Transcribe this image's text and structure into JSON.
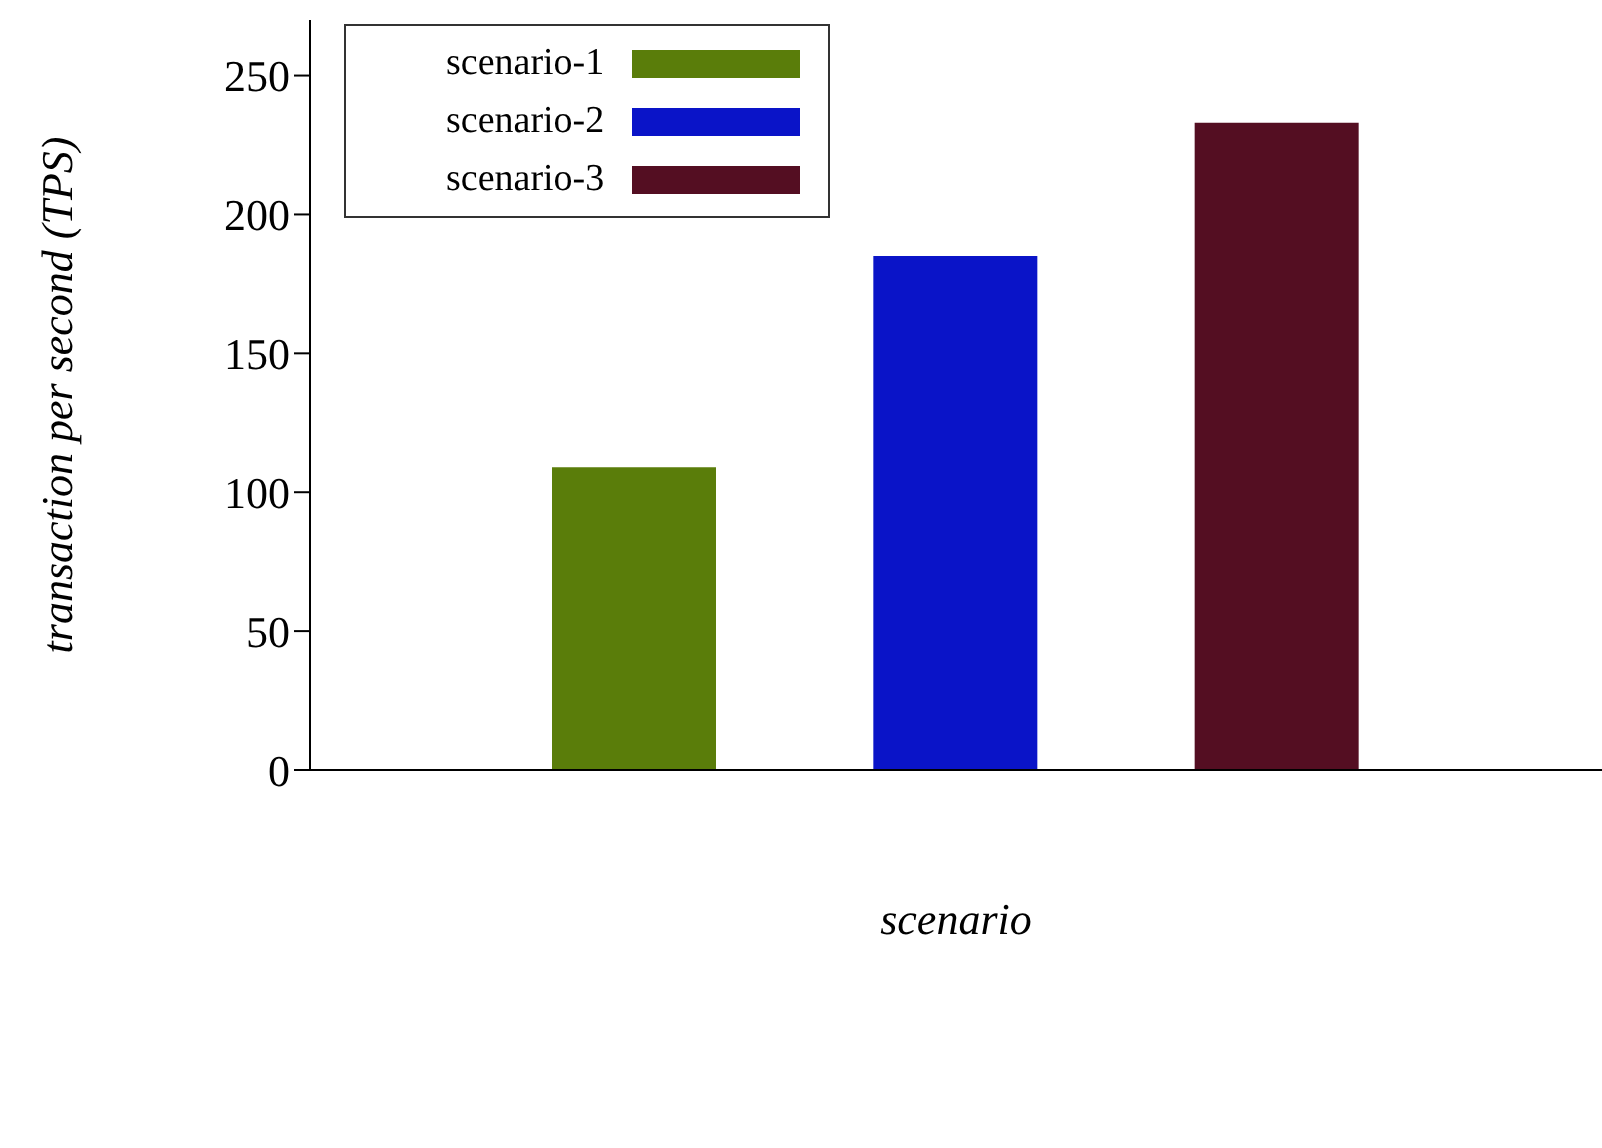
{
  "chart_data": {
    "type": "bar",
    "xlabel": "scenario",
    "ylabel": "transaction per second (TPS)",
    "categories": [
      null,
      null,
      null
    ],
    "stacked": true,
    "legend": "top left",
    "ylim": [
      0,
      270
    ],
    "yticks": [
      0,
      50,
      100,
      150,
      200,
      250
    ],
    "series": [
      {
        "name": "scenario-1",
        "color": "#5a7d0a",
        "values": [
          109,
          null,
          null
        ]
      },
      {
        "name": "scenario-2",
        "color": "#0a14c8",
        "values": [
          null,
          185,
          null
        ]
      },
      {
        "name": "scenario-3",
        "color": "#540e22",
        "values": [
          null,
          null,
          233
        ]
      }
    ]
  }
}
